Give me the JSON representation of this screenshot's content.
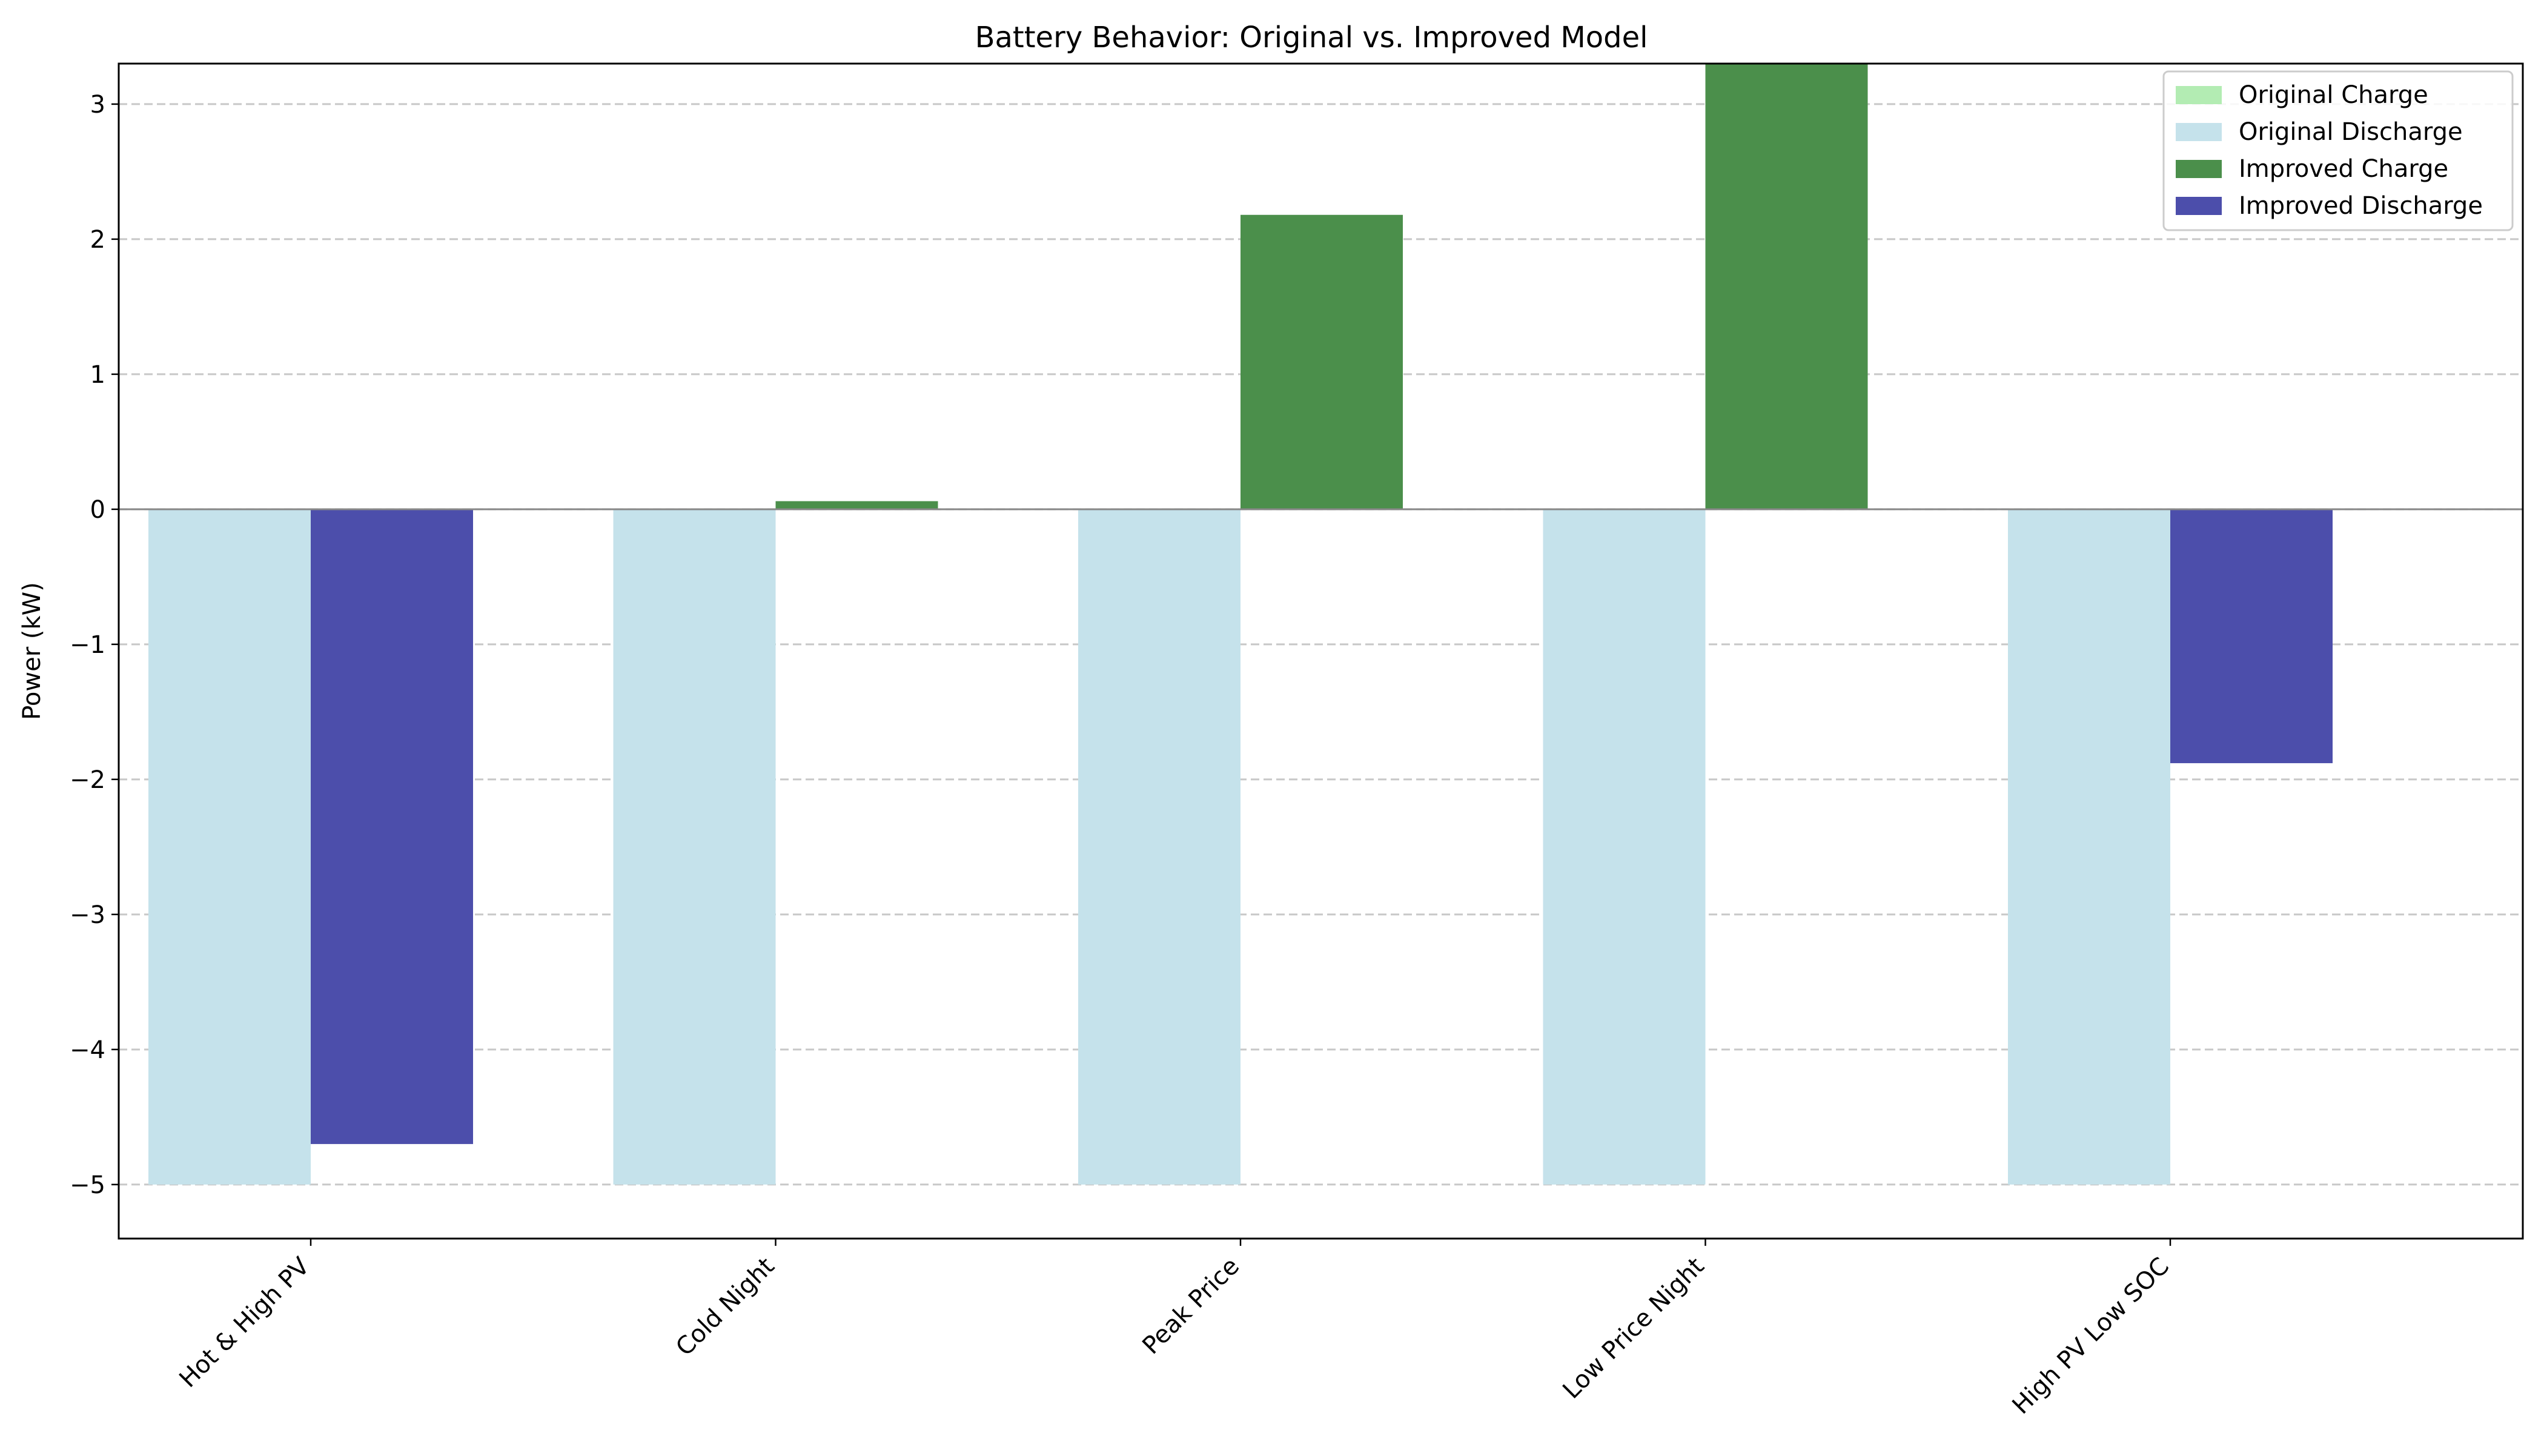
{
  "chart_data": {
    "type": "bar",
    "title": "Battery Behavior: Original vs. Improved Model",
    "xlabel": "",
    "ylabel": "Power (kW)",
    "categories": [
      "Hot & High PV",
      "Cold Night",
      "Peak Price",
      "Low Price Night",
      "High PV Low SOC"
    ],
    "ylim": [
      -5.4,
      3.3
    ],
    "yticks": [
      3,
      2,
      1,
      0,
      -1,
      -2,
      -3,
      -4,
      -5
    ],
    "ytick_labels": [
      "3",
      "2",
      "1",
      "0",
      "−1",
      "−2",
      "−3",
      "−4",
      "−5"
    ],
    "grid": "horizontal dashed",
    "legend_position": "top-right",
    "series": [
      {
        "name": "Original Charge",
        "color": "#b3ecb3",
        "offset": "left",
        "values": [
          0,
          0,
          0,
          0,
          0
        ]
      },
      {
        "name": "Original Discharge",
        "color": "#c5e2eb",
        "offset": "left",
        "values": [
          -5,
          -5,
          -5,
          -5,
          -5
        ]
      },
      {
        "name": "Improved Charge",
        "color": "#4b8f4b",
        "offset": "right",
        "values": [
          0,
          0.06,
          2.18,
          3.3,
          0
        ]
      },
      {
        "name": "Improved Discharge",
        "color": "#4c4eab",
        "offset": "right",
        "values": [
          -4.7,
          0,
          0,
          0,
          -1.88
        ]
      }
    ]
  }
}
